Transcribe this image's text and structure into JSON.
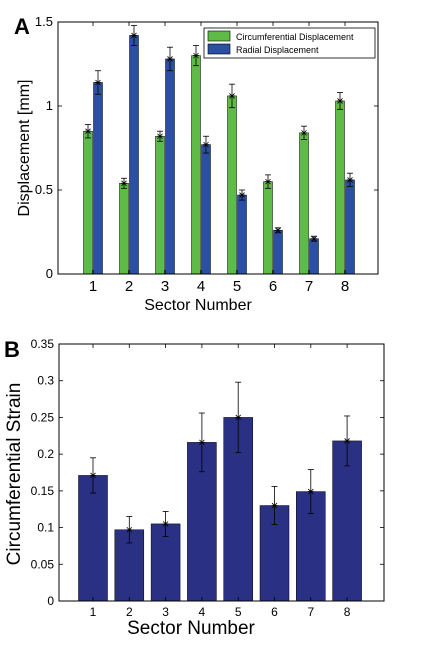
{
  "chart_data": [
    {
      "panel": "A",
      "type": "bar",
      "categories": [
        "1",
        "2",
        "3",
        "4",
        "5",
        "6",
        "7",
        "8"
      ],
      "series": [
        {
          "name": "Circumferential Displacement",
          "color": "#5dbb46",
          "values": [
            0.85,
            0.54,
            0.82,
            1.3,
            1.06,
            0.55,
            0.84,
            1.03
          ],
          "errors": [
            0.04,
            0.03,
            0.03,
            0.06,
            0.07,
            0.04,
            0.04,
            0.05
          ]
        },
        {
          "name": "Radial Displacement",
          "color": "#2b4fa3",
          "values": [
            1.14,
            1.42,
            1.28,
            0.77,
            0.47,
            0.26,
            0.21,
            0.56
          ],
          "errors": [
            0.07,
            0.06,
            0.07,
            0.05,
            0.03,
            0.015,
            0.015,
            0.04
          ]
        }
      ],
      "xlabel": "Sector Number",
      "ylabel": "Displacement [mm]",
      "ylim": [
        0,
        1.5
      ],
      "yticks": [
        "0",
        "0.5",
        "1",
        "1.5"
      ],
      "legend": "top-right",
      "grid": false
    },
    {
      "panel": "B",
      "type": "bar",
      "categories": [
        "1",
        "2",
        "3",
        "4",
        "5",
        "6",
        "7",
        "8"
      ],
      "series": [
        {
          "color": "#2a3184",
          "values": [
            0.171,
            0.097,
            0.105,
            0.216,
            0.25,
            0.13,
            0.149,
            0.218
          ],
          "errors": [
            0.024,
            0.018,
            0.017,
            0.04,
            0.048,
            0.026,
            0.03,
            0.034
          ]
        }
      ],
      "xlabel": "Sector Number",
      "ylabel": "Circumferential Strain",
      "ylim": [
        0,
        0.35
      ],
      "yticks": [
        "0",
        "0.05",
        "0.1",
        "0.15",
        "0.2",
        "0.25",
        "0.3",
        "0.35"
      ],
      "legend": "none",
      "grid": false
    }
  ]
}
